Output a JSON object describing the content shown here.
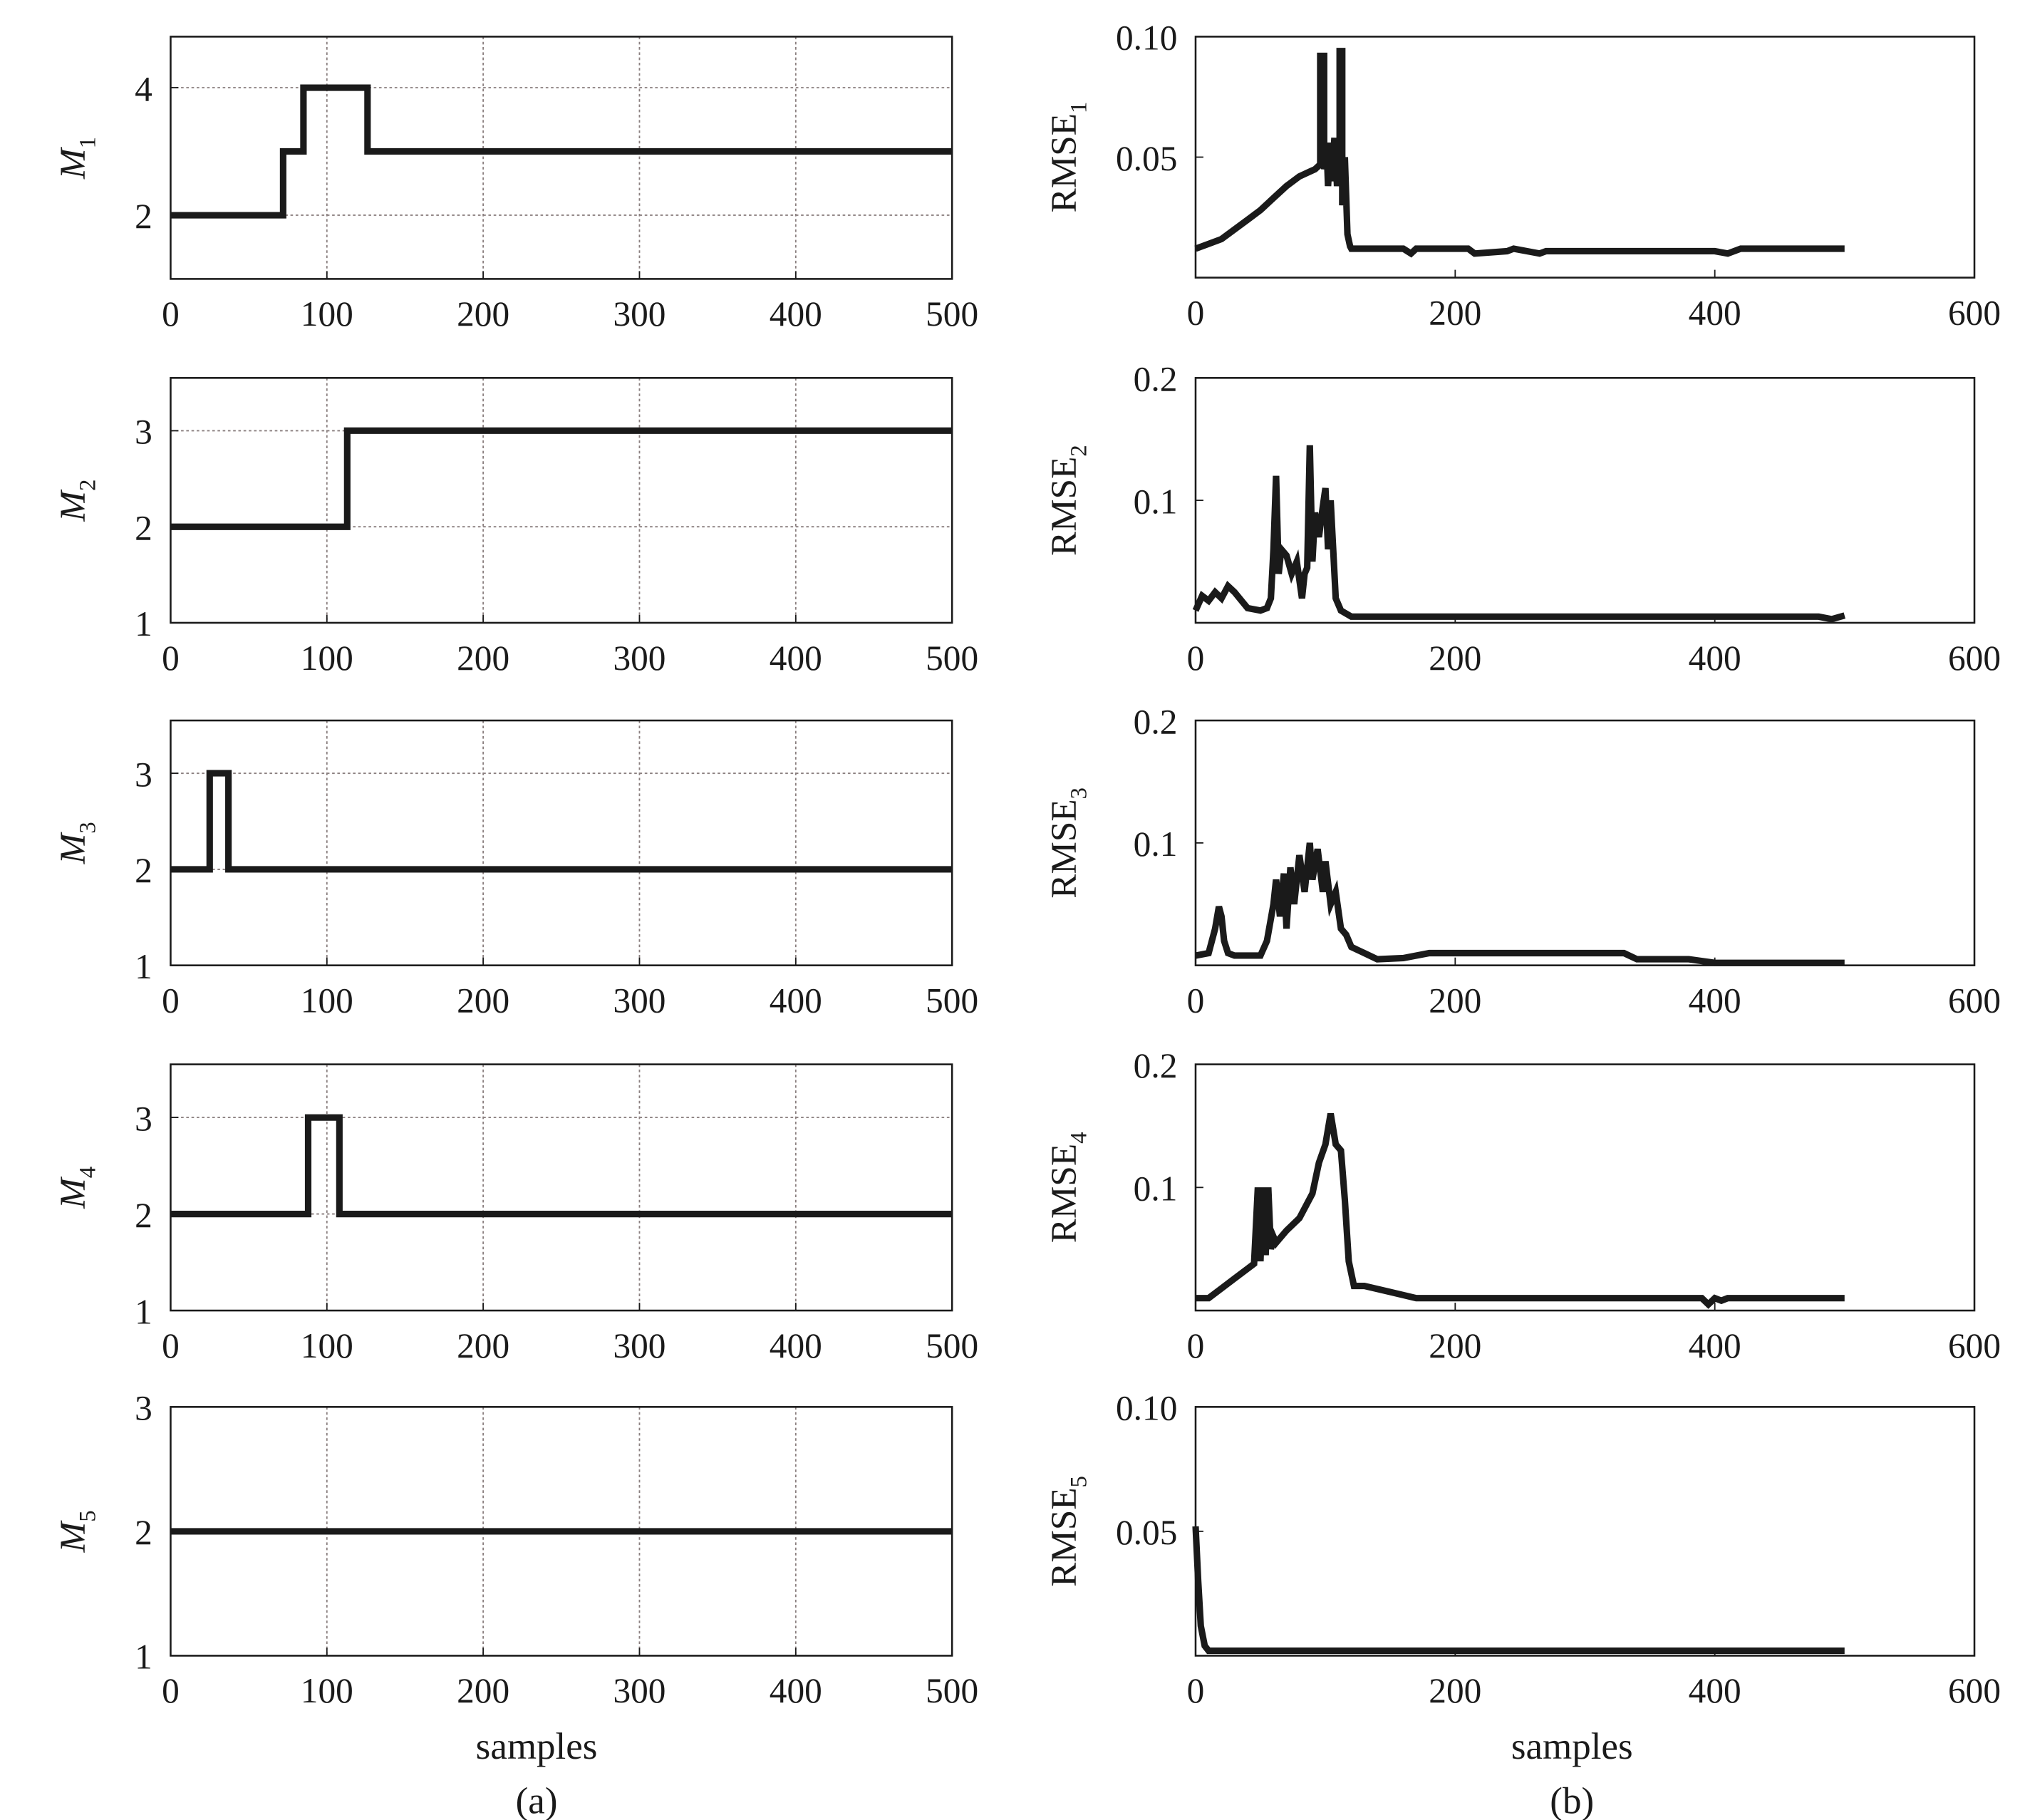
{
  "figure": {
    "left_xlabel": "samples",
    "right_xlabel": "samples",
    "left_caption": "(a)",
    "right_caption": "(b)"
  },
  "colors": {
    "line": "#1a1a1a",
    "frame": "#1a1a1a",
    "grid": "#8a7f7f",
    "background": "#ffffff"
  },
  "chart_data": [
    {
      "type": "line",
      "ylabel": "M",
      "ylabel_sub": "1",
      "ylabel_italic": true,
      "xlim": [
        0,
        500
      ],
      "ylim": [
        1,
        4.8
      ],
      "xticks": [
        0,
        100,
        200,
        300,
        400,
        500
      ],
      "xtick_labels": [
        "0",
        "100",
        "200",
        "300",
        "400",
        "500"
      ],
      "yticks": [
        2,
        4
      ],
      "ytick_labels": [
        "2",
        "4"
      ],
      "grid": true,
      "grid_y": [
        2,
        4
      ],
      "series": [
        {
          "x": [
            0,
            72,
            72,
            85,
            85,
            126,
            126,
            500
          ],
          "y": [
            2,
            2,
            3,
            3,
            4,
            4,
            3,
            3
          ]
        }
      ]
    },
    {
      "type": "line",
      "ylabel": "M",
      "ylabel_sub": "2",
      "ylabel_italic": true,
      "xlim": [
        0,
        500
      ],
      "ylim": [
        1,
        3.55
      ],
      "xticks": [
        0,
        100,
        200,
        300,
        400,
        500
      ],
      "xtick_labels": [
        "0",
        "100",
        "200",
        "300",
        "400",
        "500"
      ],
      "yticks": [
        1,
        2,
        3
      ],
      "ytick_labels": [
        "1",
        "2",
        "3"
      ],
      "grid": true,
      "grid_y": [
        2,
        3
      ],
      "series": [
        {
          "x": [
            0,
            113,
            113,
            500
          ],
          "y": [
            2,
            2,
            3,
            3
          ]
        }
      ]
    },
    {
      "type": "line",
      "ylabel": "M",
      "ylabel_sub": "3",
      "ylabel_italic": true,
      "xlim": [
        0,
        500
      ],
      "ylim": [
        1,
        3.55
      ],
      "xticks": [
        0,
        100,
        200,
        300,
        400,
        500
      ],
      "xtick_labels": [
        "0",
        "100",
        "200",
        "300",
        "400",
        "500"
      ],
      "yticks": [
        1,
        2,
        3
      ],
      "ytick_labels": [
        "1",
        "2",
        "3"
      ],
      "grid": true,
      "grid_y": [
        2,
        3
      ],
      "series": [
        {
          "x": [
            0,
            25,
            25,
            37,
            37,
            500
          ],
          "y": [
            2,
            2,
            3,
            3,
            2,
            2
          ]
        }
      ]
    },
    {
      "type": "line",
      "ylabel": "M",
      "ylabel_sub": "4",
      "ylabel_italic": true,
      "xlim": [
        0,
        500
      ],
      "ylim": [
        1,
        3.55
      ],
      "xticks": [
        0,
        100,
        200,
        300,
        400,
        500
      ],
      "xtick_labels": [
        "0",
        "100",
        "200",
        "300",
        "400",
        "500"
      ],
      "yticks": [
        1,
        2,
        3
      ],
      "ytick_labels": [
        "1",
        "2",
        "3"
      ],
      "grid": true,
      "grid_y": [
        2,
        3
      ],
      "series": [
        {
          "x": [
            0,
            88,
            88,
            108,
            108,
            500
          ],
          "y": [
            2,
            2,
            3,
            3,
            2,
            2
          ]
        }
      ]
    },
    {
      "type": "line",
      "ylabel": "M",
      "ylabel_sub": "5",
      "ylabel_italic": true,
      "xlim": [
        0,
        500
      ],
      "ylim": [
        1,
        3
      ],
      "xticks": [
        0,
        100,
        200,
        300,
        400,
        500
      ],
      "xtick_labels": [
        "0",
        "100",
        "200",
        "300",
        "400",
        "500"
      ],
      "yticks": [
        1,
        2,
        3
      ],
      "ytick_labels": [
        "1",
        "2",
        "3"
      ],
      "grid": true,
      "grid_y": [],
      "series": [
        {
          "x": [
            0,
            500
          ],
          "y": [
            2,
            2
          ]
        }
      ]
    },
    {
      "type": "line",
      "ylabel": "RMSE",
      "ylabel_sub": "1",
      "ylabel_italic": false,
      "xlim": [
        0,
        600
      ],
      "ylim": [
        0,
        0.1
      ],
      "xticks": [
        0,
        200,
        400,
        600
      ],
      "xtick_labels": [
        "0",
        "200",
        "400",
        "600"
      ],
      "yticks": [
        0.05,
        0.1
      ],
      "ytick_labels": [
        "0.05",
        "0.10"
      ],
      "grid": false,
      "series": [
        {
          "x": [
            0,
            10,
            20,
            30,
            40,
            50,
            60,
            70,
            80,
            88,
            92,
            96,
            96,
            99,
            99,
            101,
            102,
            104,
            105,
            107,
            109,
            111,
            111,
            113,
            113,
            115,
            117,
            119,
            120,
            130,
            160,
            166,
            170,
            210,
            215,
            240,
            245,
            265,
            270,
            300,
            400,
            410,
            420,
            430,
            500
          ],
          "y": [
            0.012,
            0.014,
            0.016,
            0.02,
            0.024,
            0.028,
            0.033,
            0.038,
            0.042,
            0.044,
            0.045,
            0.047,
            0.092,
            0.092,
            0.045,
            0.053,
            0.038,
            0.056,
            0.04,
            0.058,
            0.038,
            0.05,
            0.094,
            0.094,
            0.03,
            0.05,
            0.018,
            0.013,
            0.012,
            0.012,
            0.012,
            0.01,
            0.012,
            0.012,
            0.01,
            0.011,
            0.012,
            0.01,
            0.011,
            0.011,
            0.011,
            0.01,
            0.012,
            0.012,
            0.012
          ]
        }
      ]
    },
    {
      "type": "line",
      "ylabel": "RMSE",
      "ylabel_sub": "2",
      "ylabel_italic": false,
      "xlim": [
        0,
        600
      ],
      "ylim": [
        0,
        0.2
      ],
      "xticks": [
        0,
        200,
        400,
        600
      ],
      "xtick_labels": [
        "0",
        "200",
        "400",
        "600"
      ],
      "yticks": [
        0.1,
        0.2
      ],
      "ytick_labels": [
        "0.1",
        "0.2"
      ],
      "grid": false,
      "series": [
        {
          "x": [
            0,
            5,
            10,
            15,
            20,
            25,
            30,
            40,
            50,
            55,
            58,
            60,
            62,
            64,
            66,
            70,
            74,
            78,
            82,
            84,
            86,
            88,
            90,
            92,
            95,
            98,
            100,
            102,
            104,
            108,
            112,
            120,
            150,
            300,
            480,
            490,
            500
          ],
          "y": [
            0.01,
            0.022,
            0.018,
            0.025,
            0.02,
            0.03,
            0.025,
            0.012,
            0.01,
            0.012,
            0.02,
            0.06,
            0.12,
            0.04,
            0.06,
            0.055,
            0.04,
            0.05,
            0.02,
            0.04,
            0.045,
            0.145,
            0.05,
            0.09,
            0.07,
            0.095,
            0.11,
            0.06,
            0.1,
            0.02,
            0.01,
            0.005,
            0.005,
            0.005,
            0.005,
            0.003,
            0.006
          ]
        }
      ]
    },
    {
      "type": "line",
      "ylabel": "RMSE",
      "ylabel_sub": "3",
      "ylabel_italic": false,
      "xlim": [
        0,
        600
      ],
      "ylim": [
        0,
        0.2
      ],
      "xticks": [
        0,
        200,
        400,
        600
      ],
      "xtick_labels": [
        "0",
        "200",
        "400",
        "600"
      ],
      "yticks": [
        0.1,
        0.2
      ],
      "ytick_labels": [
        "0.1",
        "0.2"
      ],
      "grid": false,
      "series": [
        {
          "x": [
            0,
            10,
            15,
            18,
            20,
            22,
            25,
            30,
            50,
            55,
            60,
            62,
            65,
            68,
            70,
            73,
            76,
            80,
            84,
            88,
            90,
            94,
            98,
            100,
            104,
            108,
            112,
            116,
            120,
            130,
            140,
            160,
            180,
            250,
            330,
            340,
            380,
            400,
            500
          ],
          "y": [
            0.008,
            0.01,
            0.03,
            0.048,
            0.04,
            0.02,
            0.01,
            0.008,
            0.008,
            0.02,
            0.05,
            0.07,
            0.04,
            0.075,
            0.03,
            0.08,
            0.05,
            0.09,
            0.06,
            0.1,
            0.07,
            0.095,
            0.06,
            0.085,
            0.05,
            0.06,
            0.03,
            0.025,
            0.015,
            0.01,
            0.005,
            0.006,
            0.01,
            0.01,
            0.01,
            0.005,
            0.005,
            0.002,
            0.002
          ]
        }
      ]
    },
    {
      "type": "line",
      "ylabel": "RMSE",
      "ylabel_sub": "4",
      "ylabel_italic": false,
      "xlim": [
        0,
        600
      ],
      "ylim": [
        0,
        0.2
      ],
      "xticks": [
        0,
        200,
        400,
        600
      ],
      "xtick_labels": [
        "0",
        "200",
        "400",
        "600"
      ],
      "yticks": [
        0.1,
        0.2
      ],
      "ytick_labels": [
        "0.1",
        "0.2"
      ],
      "grid": false,
      "series": [
        {
          "x": [
            0,
            10,
            20,
            30,
            40,
            45,
            48,
            50,
            52,
            54,
            56,
            58,
            60,
            62,
            70,
            80,
            90,
            95,
            100,
            104,
            108,
            112,
            115,
            118,
            122,
            130,
            150,
            170,
            200,
            300,
            390,
            395,
            400,
            405,
            410,
            500
          ],
          "y": [
            0.01,
            0.01,
            0.018,
            0.026,
            0.034,
            0.038,
            0.1,
            0.04,
            0.1,
            0.045,
            0.1,
            0.05,
            0.06,
            0.055,
            0.065,
            0.075,
            0.095,
            0.12,
            0.135,
            0.16,
            0.135,
            0.13,
            0.09,
            0.04,
            0.02,
            0.02,
            0.015,
            0.01,
            0.01,
            0.01,
            0.01,
            0.005,
            0.01,
            0.008,
            0.01,
            0.01
          ]
        }
      ]
    },
    {
      "type": "line",
      "ylabel": "RMSE",
      "ylabel_sub": "5",
      "ylabel_italic": false,
      "xlim": [
        0,
        600
      ],
      "ylim": [
        0,
        0.1
      ],
      "xticks": [
        0,
        200,
        400,
        600
      ],
      "xtick_labels": [
        "0",
        "200",
        "400",
        "600"
      ],
      "yticks": [
        0.05,
        0.1
      ],
      "ytick_labels": [
        "0.05",
        "0.10"
      ],
      "grid": false,
      "series": [
        {
          "x": [
            0,
            2,
            4,
            7,
            10,
            500
          ],
          "y": [
            0.052,
            0.03,
            0.012,
            0.004,
            0.002,
            0.002
          ]
        }
      ]
    }
  ]
}
